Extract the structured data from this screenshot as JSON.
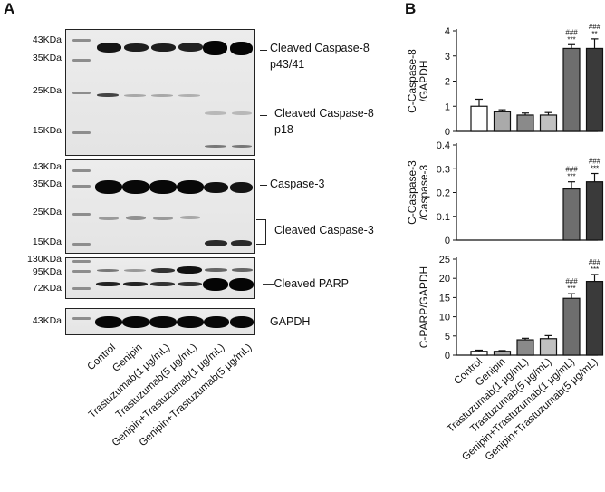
{
  "panel_a": {
    "letter": "A",
    "blots": [
      {
        "mw": [
          "43KDa",
          "35KDa",
          "25KDa",
          "15KDa"
        ],
        "labels": [
          "Cleaved Caspase-8",
          "p43/41",
          "Cleaved Caspase-8",
          "p18"
        ]
      },
      {
        "mw": [
          "43KDa",
          "35KDa",
          "25KDa",
          "15KDa"
        ],
        "labels": [
          "Caspase-3",
          "Cleaved Caspase-3"
        ]
      },
      {
        "mw": [
          "130KDa",
          "95KDa",
          "72KDa"
        ],
        "labels": [
          "Cleaved PARP"
        ]
      },
      {
        "mw": [
          "43KDa"
        ],
        "labels": [
          "GAPDH"
        ]
      }
    ]
  },
  "panel_b": {
    "letter": "B"
  },
  "x_labels": [
    "Control",
    "Genipin",
    "Trastuzumab(1 μg/mL)",
    "Trastuzumab(5 μg/mL)",
    "Genipin+Trastuzumab(1 μg/mL)",
    "Genipin+Trastuzumab(5 μg/mL)"
  ],
  "chart_data": [
    {
      "type": "bar",
      "ylabel": "C-Caspase-8\n/GAPDH",
      "ylim": [
        0,
        4
      ],
      "yticks": [
        0,
        1,
        2,
        3,
        4
      ],
      "categories": [
        "Control",
        "Genipin",
        "Trastuzumab(1 μg/mL)",
        "Trastuzumab(5 μg/mL)",
        "Genipin+Trastuzumab(1 μg/mL)",
        "Genipin+Trastuzumab(5 μg/mL)"
      ],
      "values": [
        1.0,
        0.78,
        0.65,
        0.65,
        3.3,
        3.3
      ],
      "errors": [
        0.28,
        0.08,
        0.08,
        0.1,
        0.15,
        0.38
      ],
      "annotations": [
        [],
        [],
        [],
        [],
        [
          "###",
          "***"
        ],
        [
          "###",
          "**"
        ]
      ]
    },
    {
      "type": "bar",
      "ylabel": "C-Caspase-3\n/Caspase-3",
      "ylim": [
        0,
        0.4
      ],
      "yticks": [
        0,
        0.1,
        0.2,
        0.3,
        0.4
      ],
      "categories": [
        "Control",
        "Genipin",
        "Trastuzumab(1 μg/mL)",
        "Trastuzumab(5 μg/mL)",
        "Genipin+Trastuzumab(1 μg/mL)",
        "Genipin+Trastuzumab(5 μg/mL)"
      ],
      "values": [
        0,
        0,
        0,
        0,
        0.215,
        0.245
      ],
      "errors": [
        0,
        0,
        0,
        0,
        0.03,
        0.035
      ],
      "annotations": [
        [],
        [],
        [],
        [],
        [
          "###",
          "***"
        ],
        [
          "###",
          "***"
        ]
      ]
    },
    {
      "type": "bar",
      "ylabel": "C-PARP/GAPDH",
      "ylim": [
        0,
        25
      ],
      "yticks": [
        0,
        5,
        10,
        15,
        20,
        25
      ],
      "categories": [
        "Control",
        "Genipin",
        "Trastuzumab(1 μg/mL)",
        "Trastuzumab(5 μg/mL)",
        "Genipin+Trastuzumab(1 μg/mL)",
        "Genipin+Trastuzumab(5 μg/mL)"
      ],
      "values": [
        1.0,
        1.0,
        4.0,
        4.3,
        14.8,
        19.2
      ],
      "errors": [
        0.3,
        0.2,
        0.4,
        0.8,
        1.2,
        1.8
      ],
      "annotations": [
        [],
        [],
        [],
        [],
        [
          "###",
          "***"
        ],
        [
          "###",
          "***"
        ]
      ]
    }
  ],
  "bar_colors": [
    "#ffffff",
    "#aaaaaa",
    "#8a8a8a",
    "#c0c0c0",
    "#6e6e6e",
    "#3a3a3a"
  ]
}
